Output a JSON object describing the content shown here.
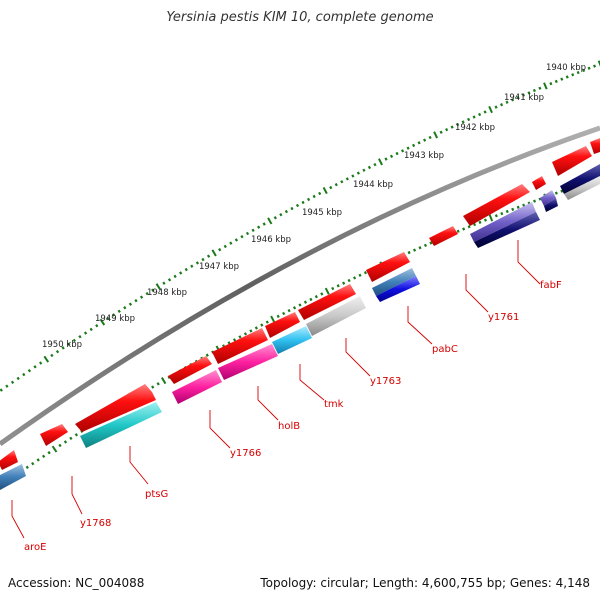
{
  "title": "Yersinia pestis KIM 10, complete genome",
  "footer": {
    "accession": "Accession: NC_004088",
    "stats": "Topology: circular; Length: 4,600,755 bp; Genes: 4,148"
  },
  "colors": {
    "backbone": "#808080",
    "tick": "#1a7a1a",
    "label": "#d40000",
    "gene_arrow": "#ff0000"
  },
  "kbp_ticks": [
    "1940 kbp",
    "1941 kbp",
    "1942 kbp",
    "1943 kbp",
    "1944 kbp",
    "1945 kbp",
    "1946 kbp",
    "1947 kbp",
    "1948 kbp",
    "1949 kbp",
    "1950 kbp"
  ],
  "gene_labels": [
    "fabF",
    "y1761",
    "pabC",
    "y1763",
    "tmk",
    "holB",
    "y1766",
    "ptsG",
    "y1768",
    "aroE"
  ]
}
